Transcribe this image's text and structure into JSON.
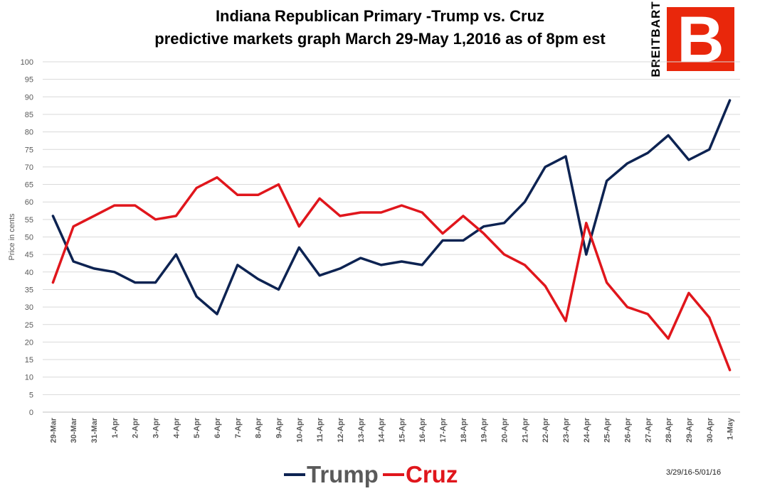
{
  "chart_data": {
    "type": "line",
    "title": "Indiana Republican Primary -Trump vs. Cruz",
    "subtitle": "predictive markets graph March 29-May 1,2016 as of 8pm est",
    "ylabel": "Price in cents",
    "xlabel": "",
    "ylim": [
      0,
      100
    ],
    "ytick_step": 5,
    "grid": true,
    "legend_placement": "bottom",
    "categories": [
      "29-Mar",
      "30-Mar",
      "31-Mar",
      "1-Apr",
      "2-Apr",
      "3-Apr",
      "4-Apr",
      "5-Apr",
      "6-Apr",
      "7-Apr",
      "8-Apr",
      "9-Apr",
      "10-Apr",
      "11-Apr",
      "12-Apr",
      "13-Apr",
      "14-Apr",
      "15-Apr",
      "16-Apr",
      "17-Apr",
      "18-Apr",
      "19-Apr",
      "20-Apr",
      "21-Apr",
      "22-Apr",
      "23-Apr",
      "24-Apr",
      "25-Apr",
      "26-Apr",
      "27-Apr",
      "28-Apr",
      "29-Apr",
      "30-Apr",
      "1-May"
    ],
    "series": [
      {
        "name": "Trump",
        "color": "#0d2352",
        "values": [
          56,
          43,
          41,
          40,
          37,
          37,
          45,
          33,
          28,
          42,
          38,
          35,
          47,
          39,
          41,
          44,
          42,
          43,
          42,
          49,
          49,
          53,
          54,
          60,
          70,
          73,
          45,
          66,
          71,
          74,
          79,
          72,
          75,
          89
        ]
      },
      {
        "name": "Cruz",
        "color": "#e0161c",
        "values": [
          37,
          53,
          56,
          59,
          59,
          55,
          56,
          64,
          67,
          62,
          62,
          65,
          53,
          61,
          56,
          57,
          57,
          59,
          57,
          51,
          56,
          51,
          45,
          42,
          36,
          26,
          54,
          37,
          30,
          28,
          21,
          34,
          27,
          12
        ]
      }
    ]
  },
  "logo": {
    "text": "BREITBART",
    "letter": "B",
    "box_color": "#e9270b"
  },
  "footnote": "3/29/16-5/01/16"
}
